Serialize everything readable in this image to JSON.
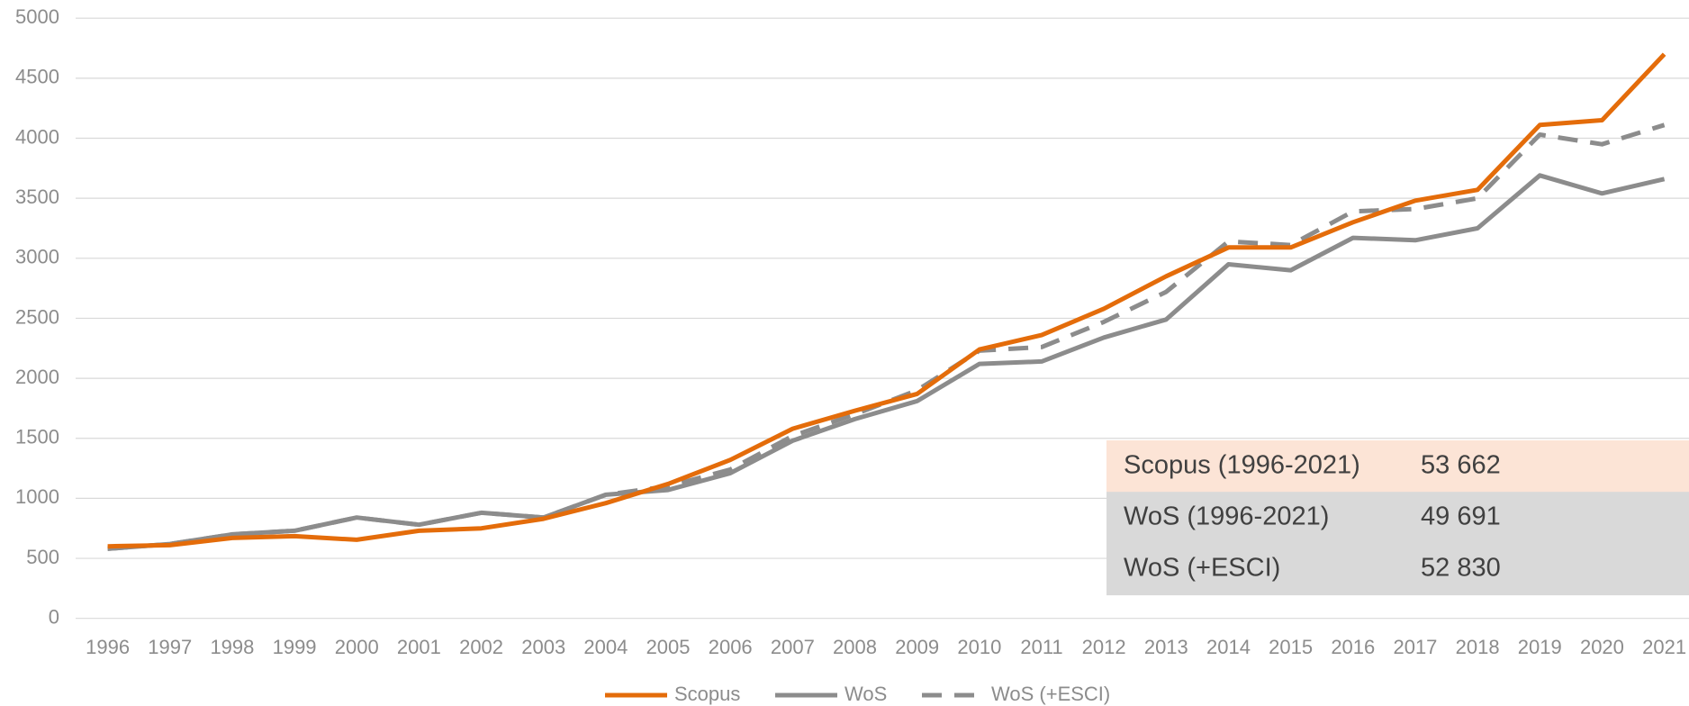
{
  "chart_data": {
    "type": "line",
    "categories": [
      "1996",
      "1997",
      "1998",
      "1999",
      "2000",
      "2001",
      "2002",
      "2003",
      "2004",
      "2005",
      "2006",
      "2007",
      "2008",
      "2009",
      "2010",
      "2011",
      "2012",
      "2013",
      "2014",
      "2015",
      "2016",
      "2017",
      "2018",
      "2019",
      "2020",
      "2021"
    ],
    "series": [
      {
        "name": "Scopus",
        "color": "#e46c0a",
        "dash": false,
        "values": [
          600,
          610,
          670,
          685,
          655,
          730,
          750,
          830,
          960,
          1120,
          1320,
          1580,
          1730,
          1870,
          2240,
          2360,
          2580,
          2850,
          3090,
          3090,
          3300,
          3480,
          3570,
          4110,
          4150,
          4700
        ]
      },
      {
        "name": "WoS",
        "color": "#8c8c8c",
        "dash": false,
        "values": [
          580,
          620,
          700,
          730,
          840,
          780,
          880,
          840,
          1030,
          1070,
          1210,
          1480,
          1660,
          1810,
          2120,
          2140,
          2340,
          2490,
          2950,
          2900,
          3170,
          3150,
          3250,
          3690,
          3540,
          3660
        ]
      },
      {
        "name": "WoS (+ESCI)",
        "color": "#8c8c8c",
        "dash": true,
        "values": [
          580,
          620,
          700,
          730,
          840,
          780,
          880,
          840,
          1030,
          1100,
          1240,
          1520,
          1700,
          1900,
          2230,
          2260,
          2470,
          2720,
          3140,
          3110,
          3390,
          3410,
          3500,
          4030,
          3950,
          4110
        ]
      }
    ],
    "ylim": [
      0,
      5000
    ],
    "yticks": [
      0,
      500,
      1000,
      1500,
      2000,
      2500,
      3000,
      3500,
      4000,
      4500,
      5000
    ],
    "grid": true,
    "legend": "bottom",
    "table": {
      "rows": [
        [
          "Scopus (1996-2021)",
          "53 662"
        ],
        [
          "WoS (1996-2021)",
          "49 691"
        ],
        [
          "WoS (+ESCI)",
          "52 830"
        ]
      ],
      "colors": [
        "#fce4d6",
        "#d9d9d9",
        "#d9d9d9"
      ]
    }
  }
}
